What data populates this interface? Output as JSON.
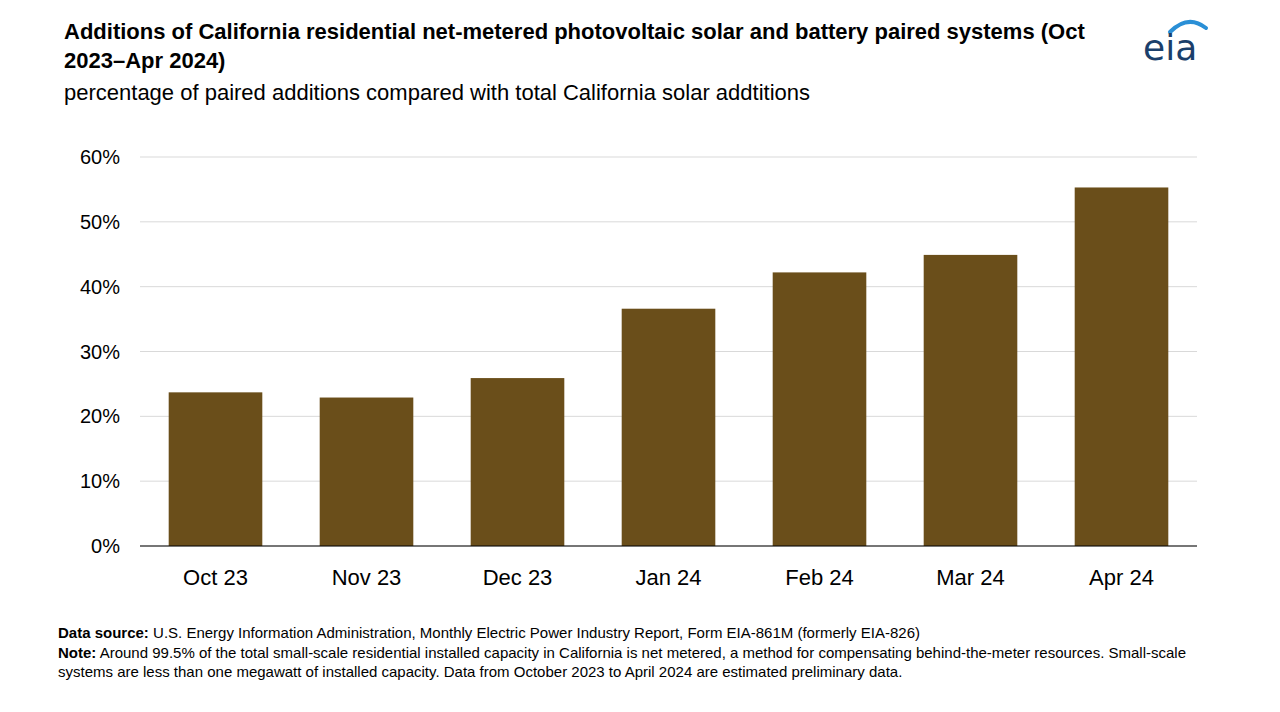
{
  "chart_data": {
    "type": "bar",
    "title": "Additions of California residential net-metered photovoltaic solar and battery paired systems (Oct 2023–Apr 2024)",
    "subtitle": "percentage of paired additions compared with total California solar addtitions",
    "logo": "eia",
    "source_label": "Data source:",
    "source": "U.S. Energy Information Administration, Monthly Electric Power Industry Report, Form EIA-861M (formerly EIA-826)",
    "note_label": "Note:",
    "note": "Around 99.5% of the total small-scale residential installed capacity in California is net metered, a method for compensating behind-the-meter resources. Small-scale systems are less than one megawatt of installed capacity. Data from October 2023 to April 2024 are estimated preliminary data.",
    "categories": [
      "Oct 23",
      "Nov 23",
      "Dec 23",
      "Jan 24",
      "Feb 24",
      "Mar 24",
      "Apr 24"
    ],
    "values": [
      23.7,
      22.9,
      25.9,
      36.6,
      42.2,
      44.9,
      55.3
    ],
    "color": "#6a4e1a",
    "ylim": [
      0,
      60
    ],
    "yticks": [
      {
        "value": 0,
        "label": "0%"
      },
      {
        "value": 10,
        "label": "10%"
      },
      {
        "value": 20,
        "label": "20%"
      },
      {
        "value": 30,
        "label": "30%"
      },
      {
        "value": 40,
        "label": "40%"
      },
      {
        "value": 50,
        "label": "50%"
      },
      {
        "value": 60,
        "label": "60%"
      }
    ],
    "grid": true
  }
}
